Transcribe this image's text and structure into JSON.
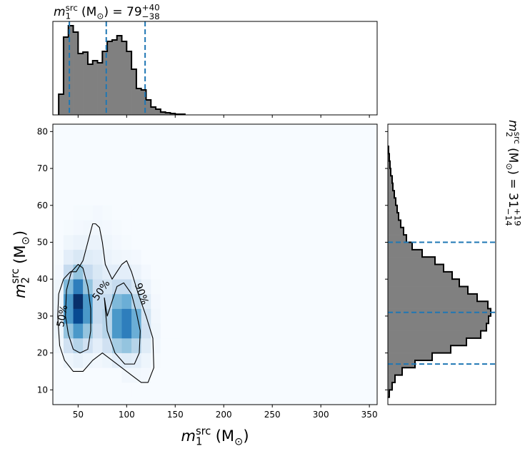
{
  "chart_data": [
    {
      "type": "histogram",
      "orientation": "vertical",
      "title": {
        "symbol": "m",
        "sup": "src",
        "sub": "1",
        "unit": "(M",
        "unit_sub": "⊙",
        "rest": ") = 79",
        "plus": "+40",
        "minus": "−38"
      },
      "bins": [
        30,
        35,
        40,
        45,
        50,
        55,
        60,
        65,
        70,
        75,
        80,
        85,
        90,
        95,
        100,
        105,
        110,
        115,
        120,
        125,
        130,
        135,
        140,
        145,
        150,
        155,
        160
      ],
      "counts": [
        29,
        109,
        125,
        116,
        86,
        88,
        71,
        76,
        73,
        89,
        103,
        105,
        111,
        103,
        89,
        64,
        37,
        35,
        21,
        11,
        8,
        4,
        3,
        2,
        1,
        1
      ],
      "xlim": [
        24,
        358
      ],
      "ylim": [
        0,
        131
      ],
      "quantiles": [
        41,
        79,
        119
      ],
      "color": "#808080",
      "quantile_color": "#1f77b4"
    },
    {
      "type": "heatmap",
      "xlabel": {
        "symbol": "m",
        "sup": "src",
        "sub": "1",
        "unit": "(M",
        "unit_sub": "⊙",
        "rest": ")"
      },
      "ylabel": {
        "symbol": "m",
        "sup": "src",
        "sub": "2",
        "unit": "(M",
        "unit_sub": "⊙",
        "rest": ")"
      },
      "xlim": [
        24,
        358
      ],
      "ylim": [
        6,
        82
      ],
      "xticks": [
        50,
        100,
        150,
        200,
        250,
        300,
        350
      ],
      "yticks": [
        10,
        20,
        30,
        40,
        50,
        60,
        70,
        80
      ],
      "xedges": [
        25,
        35,
        45,
        55,
        65,
        75,
        85,
        95,
        105,
        115,
        125,
        135,
        145,
        155
      ],
      "yedges": [
        8,
        12,
        16,
        20,
        24,
        28,
        32,
        36,
        40,
        44,
        48,
        52,
        56,
        60
      ],
      "z": [
        [
          0,
          0,
          0,
          0,
          0,
          0,
          0,
          0,
          0,
          0,
          0,
          0,
          0
        ],
        [
          0,
          0,
          0,
          0,
          0,
          0,
          0,
          0.3,
          0.3,
          0.2,
          0,
          0,
          0
        ],
        [
          0,
          0.5,
          0.8,
          0.5,
          0.3,
          0.5,
          1,
          1.2,
          1,
          0.5,
          0.1,
          0,
          0
        ],
        [
          0.3,
          2,
          3,
          2,
          1,
          2,
          3.5,
          4,
          3,
          1.2,
          0.3,
          0,
          0
        ],
        [
          0.5,
          4,
          6,
          4,
          2,
          3,
          6,
          7,
          5,
          2,
          0.4,
          0,
          0
        ],
        [
          0.6,
          6,
          9,
          6,
          2.5,
          3,
          6,
          7,
          5,
          1.8,
          0.3,
          0,
          0
        ],
        [
          0.5,
          6,
          10,
          6,
          2.5,
          2.5,
          4.5,
          5,
          3,
          1.2,
          0.2,
          0,
          0
        ],
        [
          0.4,
          4.5,
          7,
          4,
          2,
          1.8,
          2.5,
          2.5,
          1.5,
          0.6,
          0.1,
          0,
          0
        ],
        [
          0.2,
          2.5,
          4,
          2.5,
          1.5,
          1,
          1,
          1,
          0.6,
          0.2,
          0,
          0,
          0
        ],
        [
          0.1,
          1,
          1.5,
          1.2,
          1,
          0.6,
          0.4,
          0.3,
          0.2,
          0,
          0,
          0,
          0
        ],
        [
          0,
          0.4,
          0.6,
          0.6,
          0.6,
          0.4,
          0.2,
          0.1,
          0,
          0,
          0,
          0,
          0
        ],
        [
          0,
          0.1,
          0.2,
          0.3,
          0.3,
          0.2,
          0.1,
          0,
          0,
          0,
          0,
          0,
          0
        ],
        [
          0,
          0,
          0.1,
          0.1,
          0.2,
          0.1,
          0,
          0,
          0,
          0,
          0,
          0,
          0
        ]
      ],
      "contours": [
        {
          "label": "50%",
          "x": [
            37,
            40,
            45,
            52,
            60,
            63,
            63,
            60,
            55,
            50,
            43,
            38,
            37
          ],
          "y": [
            30,
            25,
            21,
            20,
            21,
            26,
            32,
            38,
            43,
            44,
            42,
            37,
            30
          ]
        },
        {
          "label": "50%",
          "x": [
            77,
            80,
            88,
            98,
            108,
            113,
            114,
            110,
            105,
            97,
            90,
            85,
            80,
            77
          ],
          "y": [
            35,
            26,
            20,
            17,
            17,
            20,
            26,
            31,
            36,
            39,
            38,
            34,
            30,
            35
          ]
        },
        {
          "label": "90%",
          "x": [
            29,
            31,
            36,
            45,
            55,
            65,
            75,
            85,
            95,
            105,
            115,
            122,
            128,
            127,
            120,
            112,
            105,
            100,
            95,
            90,
            85,
            78,
            75,
            72,
            68,
            65,
            60,
            55,
            48,
            42,
            35,
            30,
            29
          ],
          "y": [
            30,
            22,
            18,
            15,
            15,
            18,
            20,
            18,
            16,
            14,
            12,
            12,
            16,
            24,
            30,
            36,
            42,
            45,
            44,
            42,
            40,
            44,
            50,
            54,
            55,
            55,
            50,
            45,
            42,
            42,
            40,
            36,
            30
          ]
        }
      ]
    },
    {
      "type": "histogram",
      "orientation": "horizontal",
      "title": {
        "symbol": "m",
        "sup": "src",
        "sub": "2",
        "unit": "(M",
        "unit_sub": "⊙",
        "rest": ") = 31",
        "plus": "+19",
        "minus": "−14"
      },
      "bins": [
        8,
        10,
        12,
        14,
        16,
        18,
        20,
        22,
        24,
        26,
        28,
        30,
        32,
        34,
        36,
        38,
        40,
        42,
        44,
        46,
        48,
        50,
        52,
        54,
        56,
        58,
        60,
        62,
        64,
        66,
        68,
        70,
        72,
        74,
        76
      ],
      "counts": [
        2,
        6,
        10,
        20,
        38,
        62,
        88,
        110,
        130,
        138,
        141,
        144,
        140,
        125,
        112,
        100,
        90,
        78,
        66,
        48,
        34,
        26,
        22,
        18,
        15,
        13,
        11,
        9,
        7,
        6,
        4,
        3,
        2,
        1
      ],
      "xlim": [
        0,
        151
      ],
      "ylim": [
        6,
        82
      ],
      "quantiles": [
        17,
        31,
        50
      ],
      "color": "#808080",
      "quantile_color": "#1f77b4"
    }
  ]
}
